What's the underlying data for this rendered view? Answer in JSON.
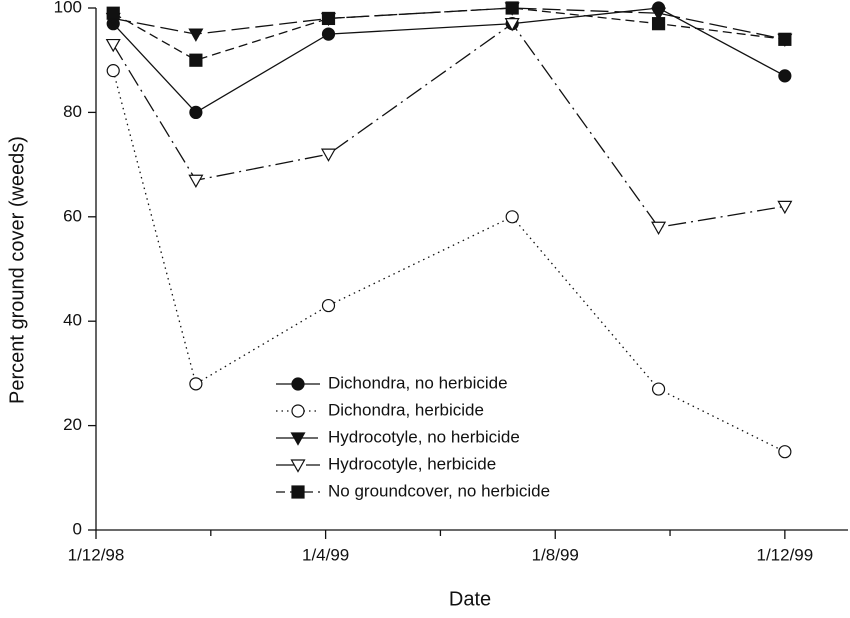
{
  "chart_data": {
    "type": "line",
    "xlabel": "Date",
    "ylabel": "Percent ground cover (weeds)",
    "x": [
      0.3,
      1.74,
      4.05,
      7.25,
      9.8,
      12
    ],
    "xlim": [
      0,
      13.1
    ],
    "xticks": [
      {
        "value": 0,
        "label": "1/12/98"
      },
      {
        "value": 4,
        "label": "1/4/99"
      },
      {
        "value": 8,
        "label": "1/8/99"
      },
      {
        "value": 12,
        "label": "1/12/99"
      }
    ],
    "xminorticks": [
      2,
      6,
      10
    ],
    "ylim": [
      0,
      100
    ],
    "yticks": [
      0,
      20,
      40,
      60,
      80,
      100
    ],
    "series": [
      {
        "name": "Dichondra, no herbicide",
        "color": "#111",
        "marker": "circle",
        "filled": true,
        "dash": "none",
        "values": [
          97,
          80,
          95,
          97,
          100,
          87
        ]
      },
      {
        "name": "Dichondra, herbicide",
        "color": "#111",
        "marker": "circle",
        "filled": false,
        "dash": "1.5 4",
        "values": [
          88,
          28,
          43,
          60,
          27,
          15
        ]
      },
      {
        "name": "Hydrocotyle, no herbicide",
        "color": "#111",
        "marker": "triangle-down",
        "filled": true,
        "dash": "18 6",
        "values": [
          98,
          95,
          98,
          100,
          99,
          94
        ]
      },
      {
        "name": "Hydrocotyle, herbicide",
        "color": "#111",
        "marker": "triangle-down",
        "filled": false,
        "dash": "18 5 2 5",
        "values": [
          93,
          67,
          72,
          97,
          58,
          62
        ]
      },
      {
        "name": "No groundcover, no herbicide",
        "color": "#111",
        "marker": "square",
        "filled": true,
        "dash": "9 5",
        "values": [
          99,
          90,
          98,
          100,
          97,
          94
        ]
      }
    ]
  }
}
